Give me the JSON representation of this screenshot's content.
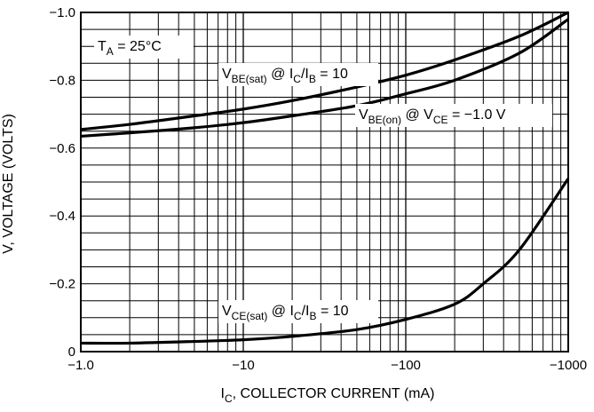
{
  "chart_data": {
    "type": "line",
    "x_scale": "log",
    "xlabel": "I",
    "xlabel_sub": "C",
    "xlabel_rest": ", COLLECTOR CURRENT (mA)",
    "ylabel": "V, VOLTAGE (VOLTS)",
    "xlim": [
      -1,
      -1000
    ],
    "ylim": [
      0,
      -1.0
    ],
    "x_ticks": [
      {
        "value": -1,
        "label": "−1.0"
      },
      {
        "value": -10,
        "label": "−10"
      },
      {
        "value": -100,
        "label": "−100"
      },
      {
        "value": -1000,
        "label": "−1000"
      }
    ],
    "y_ticks": [
      {
        "value": 0,
        "label": "0"
      },
      {
        "value": -0.2,
        "label": "−0.2"
      },
      {
        "value": -0.4,
        "label": "−0.4"
      },
      {
        "value": -0.6,
        "label": "−0.6"
      },
      {
        "value": -0.8,
        "label": "−0.8"
      },
      {
        "value": -1.0,
        "label": "−1.0"
      }
    ],
    "grid": true,
    "series": [
      {
        "key": "vbe_sat",
        "x": [
          -1,
          -2,
          -5,
          -10,
          -20,
          -50,
          -100,
          -200,
          -500,
          -1000
        ],
        "y": [
          -0.655,
          -0.67,
          -0.695,
          -0.715,
          -0.74,
          -0.78,
          -0.815,
          -0.86,
          -0.93,
          -1.0
        ]
      },
      {
        "key": "vbe_on",
        "x": [
          -1,
          -2,
          -5,
          -10,
          -20,
          -50,
          -100,
          -200,
          -500,
          -1000
        ],
        "y": [
          -0.635,
          -0.645,
          -0.66,
          -0.675,
          -0.695,
          -0.725,
          -0.76,
          -0.8,
          -0.88,
          -0.98
        ]
      },
      {
        "key": "vce_sat",
        "x": [
          -1,
          -2,
          -5,
          -10,
          -20,
          -50,
          -100,
          -200,
          -300,
          -500,
          -1000
        ],
        "y": [
          -0.025,
          -0.025,
          -0.03,
          -0.035,
          -0.045,
          -0.065,
          -0.095,
          -0.14,
          -0.2,
          -0.3,
          -0.51
        ]
      }
    ],
    "annotations": {
      "ta": {
        "main": "T",
        "sub": "A",
        "rest": " = 25°C"
      },
      "vbe_sat": {
        "p1": "V",
        "s1": "BE(sat)",
        "p2": " @ I",
        "s2": "C",
        "p3": "/I",
        "s3": "B",
        "p4": " = 10"
      },
      "vbe_on": {
        "p1": "V",
        "s1": "BE(on)",
        "p2": " @ V",
        "s2": "CE",
        "p3": " = −1.0 V"
      },
      "vce_sat": {
        "p1": "V",
        "s1": "CE(sat)",
        "p2": " @ I",
        "s2": "C",
        "p3": "/I",
        "s3": "B",
        "p4": " = 10"
      }
    }
  }
}
